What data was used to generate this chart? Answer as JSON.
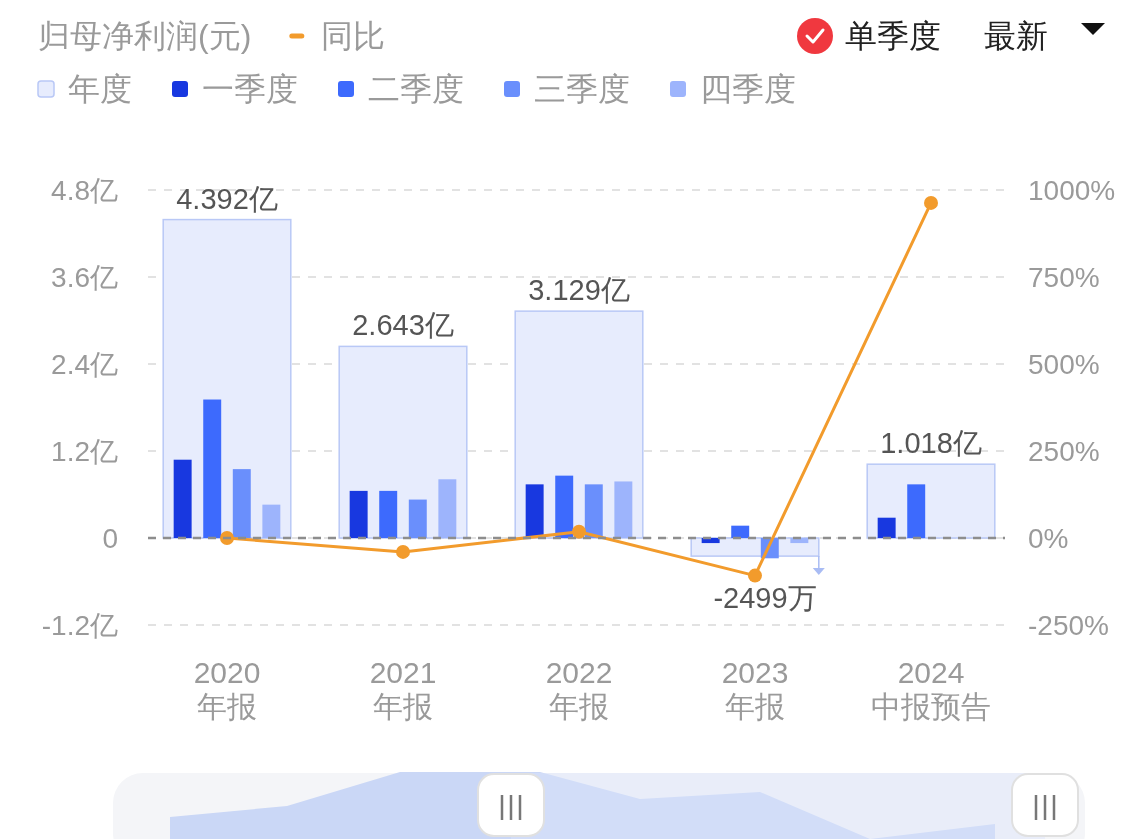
{
  "chart_data": {
    "type": "bar",
    "ylabel": "归母净利润(元)",
    "categories": [
      "2020\n年报",
      "2021\n年报",
      "2022\n年报",
      "2023\n年报",
      "2024\n中报预告"
    ],
    "series": [
      {
        "name": "年度",
        "color": "#e7ecfd",
        "values": [
          4.392,
          2.643,
          3.129,
          -0.2499,
          1.018
        ],
        "value_labels": [
          "4.392亿",
          "2.643亿",
          "3.129亿",
          null,
          "1.018亿"
        ]
      },
      {
        "name": "一季度",
        "color": "#1838e0",
        "values": [
          1.08,
          0.65,
          0.74,
          -0.07,
          0.28
        ]
      },
      {
        "name": "二季度",
        "color": "#3d6afd",
        "values": [
          1.91,
          0.65,
          0.86,
          0.17,
          0.74
        ]
      },
      {
        "name": "三季度",
        "color": "#6a8ffc",
        "values": [
          0.95,
          0.53,
          0.74,
          -0.28,
          null
        ]
      },
      {
        "name": "四季度",
        "color": "#9db4fc",
        "values": [
          0.46,
          0.81,
          0.78,
          -0.07,
          null
        ]
      },
      {
        "name": "同比",
        "type": "line",
        "axis": "y2",
        "color": "#f29b2c",
        "values": [
          0,
          -40,
          18,
          -108,
          963
        ]
      }
    ],
    "ylim": [
      -1.2,
      4.8
    ],
    "yticks": [
      {
        "value": -1.2,
        "label": "-1.2亿"
      },
      0,
      {
        "value": 1.2,
        "label": "1.2亿"
      },
      {
        "value": 2.4,
        "label": "2.4亿"
      },
      {
        "value": 3.6,
        "label": "3.6亿"
      },
      {
        "value": 4.8,
        "label": "4.8亿"
      }
    ],
    "y2lim": [
      -250,
      1000
    ],
    "y2ticks": [
      {
        "value": -250,
        "label": "-250%"
      },
      {
        "value": 0,
        "label": "0%"
      },
      {
        "value": 250,
        "label": "250%"
      },
      {
        "value": 500,
        "label": "500%"
      },
      {
        "value": 750,
        "label": "750%"
      },
      {
        "value": 1000,
        "label": "1000%"
      }
    ],
    "ref_lines": [
      {
        "axis": "y",
        "value": 0,
        "color": "#8d8d8d",
        "line_style": "dashed"
      }
    ],
    "grid": "y",
    "legend": "top left",
    "marker": "circle",
    "annotations": [
      "单季度",
      "最新",
      {
        "text": "-2499万",
        "x": "2023\n年报",
        "y": -0.2499
      }
    ]
  }
}
